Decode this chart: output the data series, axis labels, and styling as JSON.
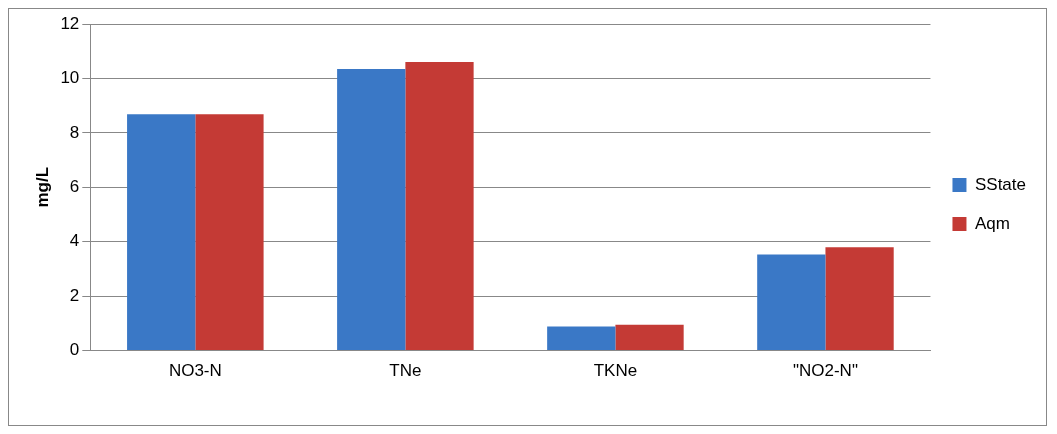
{
  "chart_data": {
    "type": "bar",
    "ylabel": "mg/L",
    "categories": [
      "NO3-N",
      "TNe",
      "TKNe",
      "\"NO2-N\""
    ],
    "series": [
      {
        "name": "SState",
        "color": "#3a78c6",
        "values": [
          8.68,
          10.35,
          0.89,
          3.53
        ]
      },
      {
        "name": "Aqm",
        "color": "#c43a35",
        "values": [
          8.68,
          10.6,
          0.95,
          3.8
        ]
      }
    ],
    "ylim": [
      0,
      12
    ],
    "yticks": [
      0,
      2,
      4,
      6,
      8,
      10,
      12
    ],
    "grid": "y",
    "legend": "right"
  }
}
